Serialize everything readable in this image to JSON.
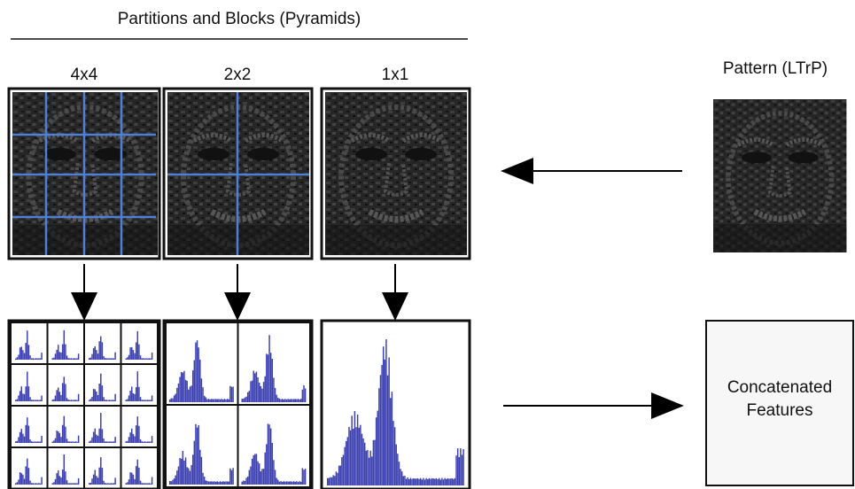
{
  "header": {
    "title": "Partitions and Blocks (Pyramids)"
  },
  "levels": [
    {
      "label": "4x4"
    },
    {
      "label": "2x2"
    },
    {
      "label": "1x1"
    }
  ],
  "pattern": {
    "label": "Pattern (LTrP)"
  },
  "output": {
    "lines": [
      "Concatenated",
      "Features"
    ]
  }
}
